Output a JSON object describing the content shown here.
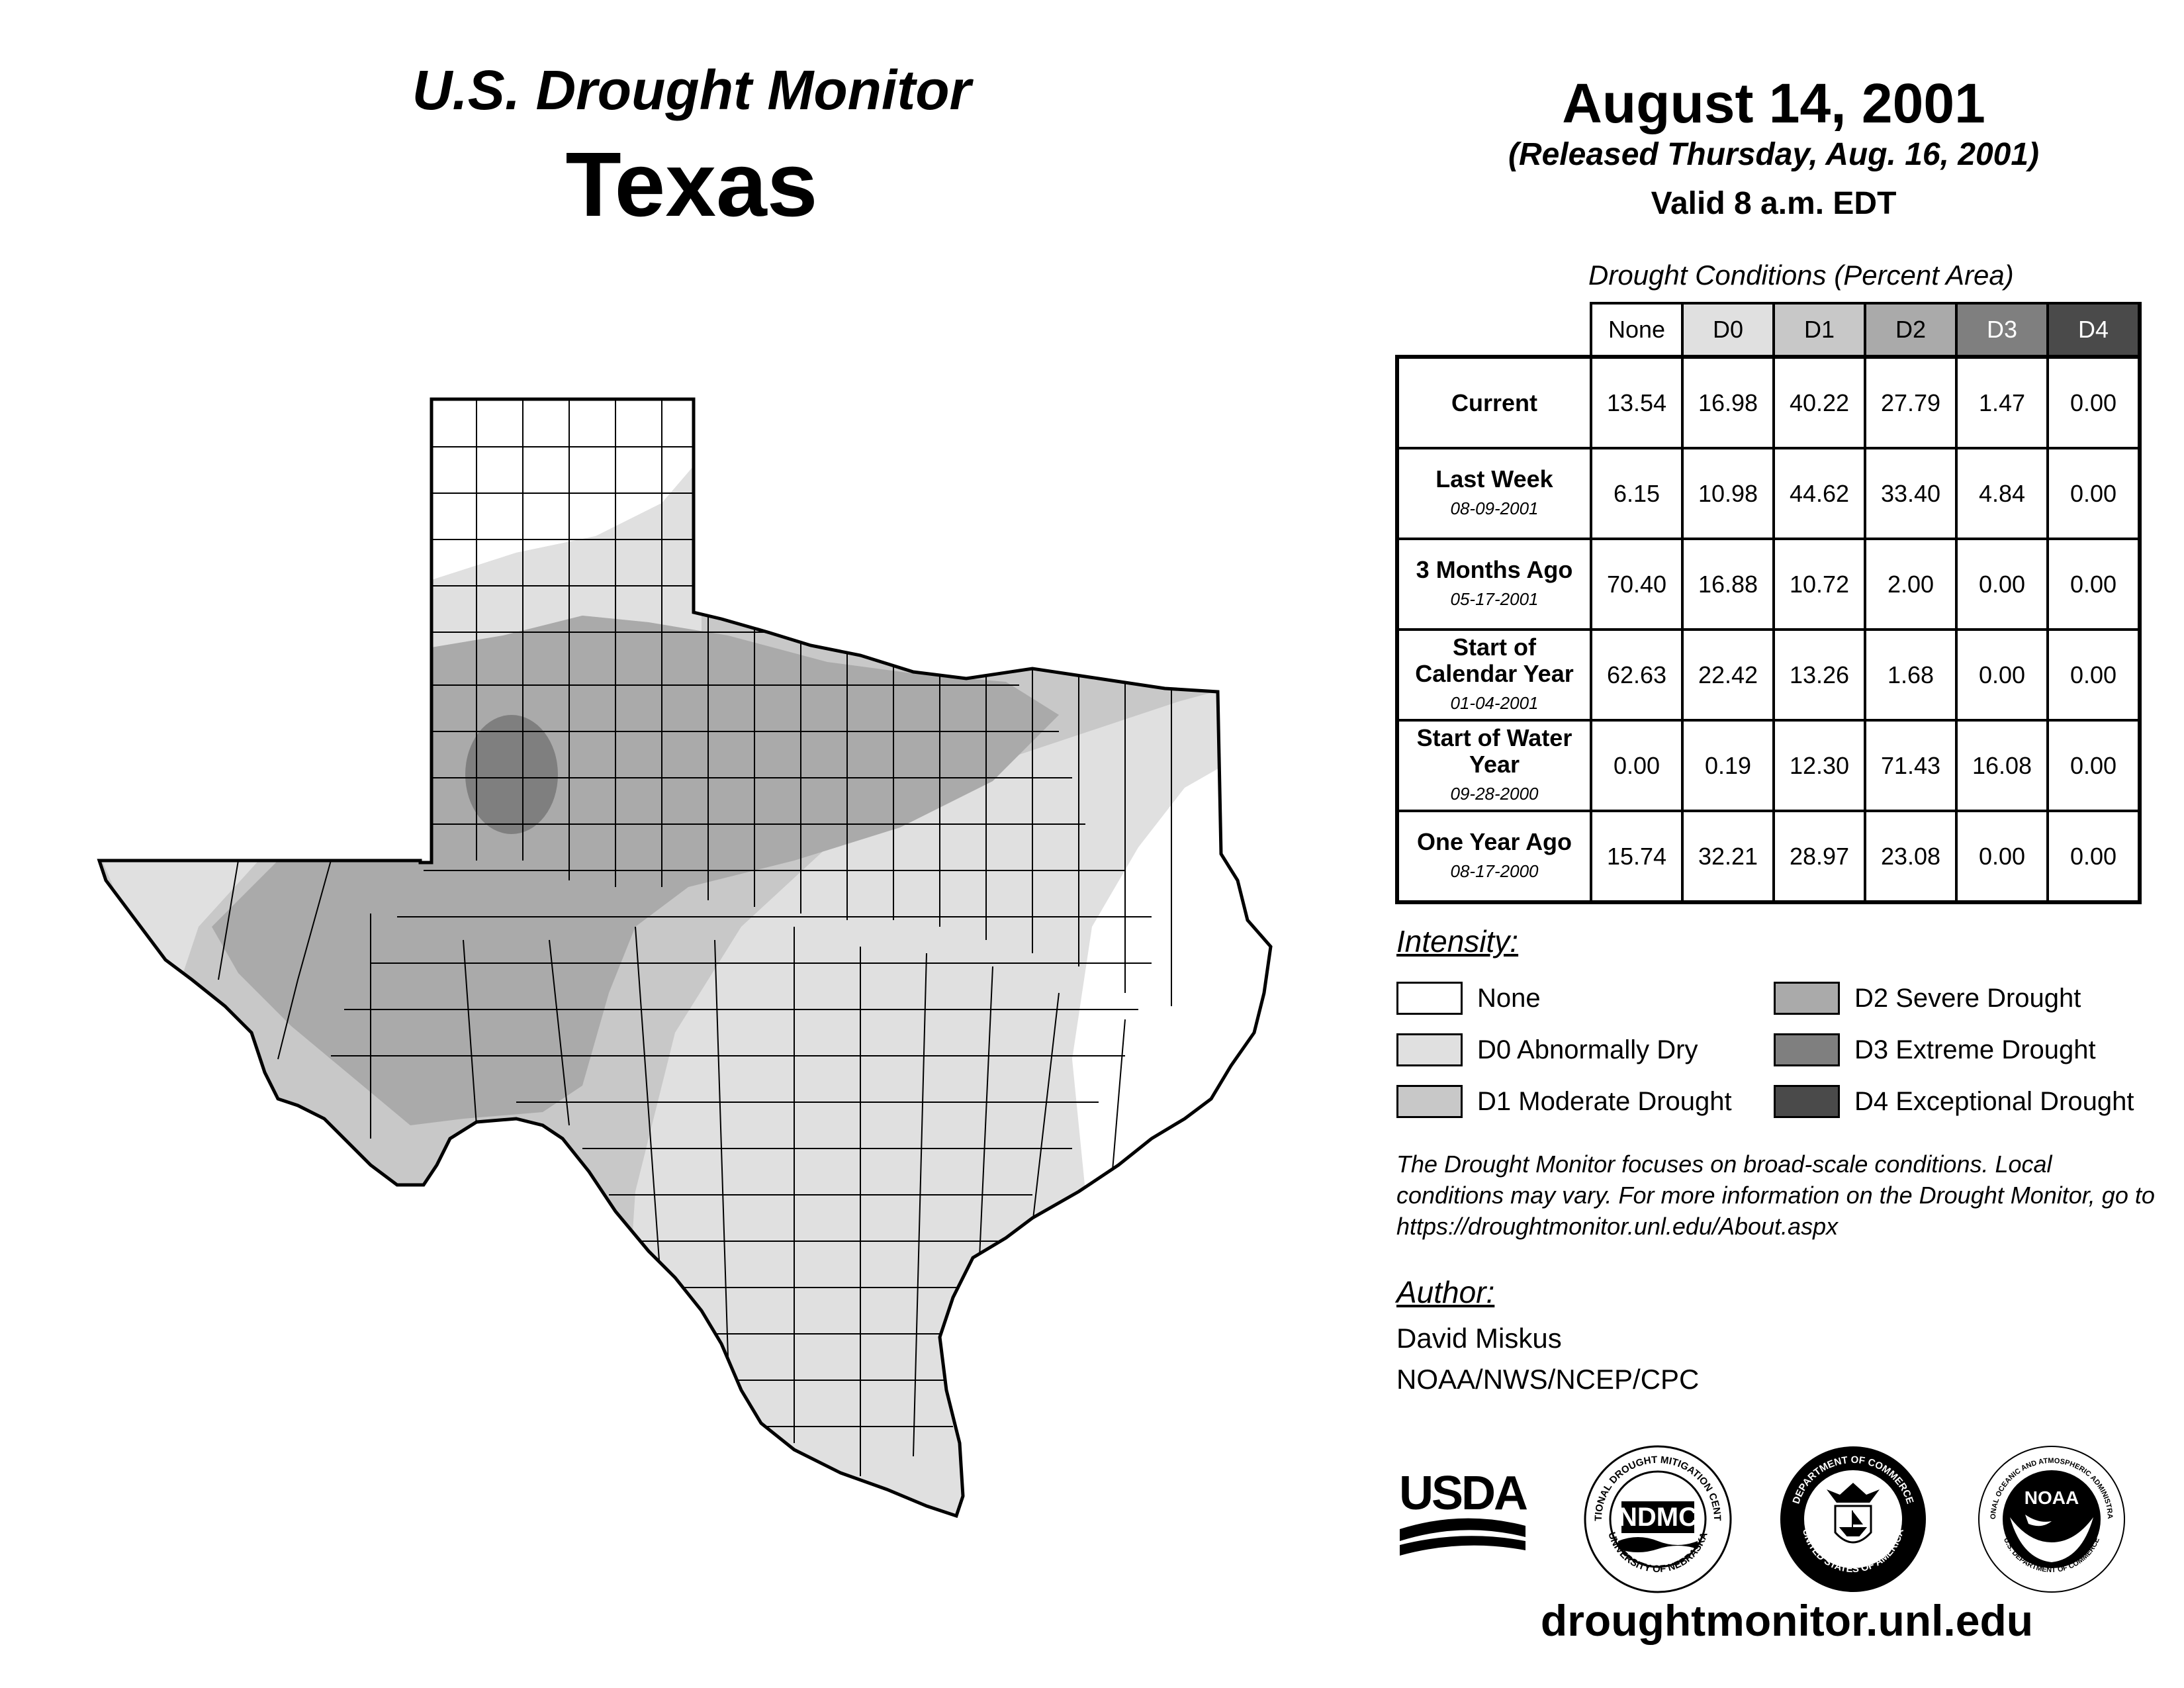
{
  "header": {
    "subtitle": "U.S. Drought Monitor",
    "state": "Texas",
    "date": "August 14, 2001",
    "released": "(Released Thursday, Aug. 16, 2001)",
    "valid": "Valid 8 a.m. EDT"
  },
  "table": {
    "caption": "Drought Conditions (Percent Area)",
    "columns": [
      "None",
      "D0",
      "D1",
      "D2",
      "D3",
      "D4"
    ],
    "rows": [
      {
        "label": "Current",
        "date": "",
        "values": [
          "13.54",
          "16.98",
          "40.22",
          "27.79",
          "1.47",
          "0.00"
        ]
      },
      {
        "label": "Last Week",
        "date": "08-09-2001",
        "values": [
          "6.15",
          "10.98",
          "44.62",
          "33.40",
          "4.84",
          "0.00"
        ]
      },
      {
        "label": "3 Months Ago",
        "date": "05-17-2001",
        "values": [
          "70.40",
          "16.88",
          "10.72",
          "2.00",
          "0.00",
          "0.00"
        ]
      },
      {
        "label": "Start of Calendar Year",
        "date": "01-04-2001",
        "values": [
          "62.63",
          "22.42",
          "13.26",
          "1.68",
          "0.00",
          "0.00"
        ]
      },
      {
        "label": "Start of Water Year",
        "date": "09-28-2000",
        "values": [
          "0.00",
          "0.19",
          "12.30",
          "71.43",
          "16.08",
          "0.00"
        ]
      },
      {
        "label": "One Year Ago",
        "date": "08-17-2000",
        "values": [
          "15.74",
          "32.21",
          "28.97",
          "23.08",
          "0.00",
          "0.00"
        ]
      }
    ]
  },
  "legend": {
    "title": "Intensity:",
    "items": [
      {
        "label": "None",
        "color": "#ffffff"
      },
      {
        "label": "D0 Abnormally Dry",
        "color": "#e0e0e0"
      },
      {
        "label": "D1 Moderate Drought",
        "color": "#c8c8c8"
      },
      {
        "label": "D2 Severe Drought",
        "color": "#aaaaaa"
      },
      {
        "label": "D3 Extreme Drought",
        "color": "#7f7f7f"
      },
      {
        "label": "D4 Exceptional Drought",
        "color": "#4a4a4a"
      }
    ]
  },
  "note": "The Drought Monitor focuses on broad-scale conditions. Local conditions may vary. For more information on the Drought Monitor, go to https://droughtmonitor.unl.edu/About.aspx",
  "author": {
    "heading": "Author:",
    "name": "David Miskus",
    "org": "NOAA/NWS/NCEP/CPC"
  },
  "logos": {
    "usda": "USDA",
    "ndmc": "NDMC",
    "ndmc_ring_top": "NATIONAL DROUGHT MITIGATION CENTER",
    "ndmc_ring_bottom": "UNIVERSITY OF NEBRASKA",
    "doc_ring_top": "DEPARTMENT OF COMMERCE",
    "doc_ring_bottom": "UNITED STATES OF AMERICA",
    "noaa": "NOAA",
    "noaa_ring_top": "NATIONAL OCEANIC AND ATMOSPHERIC ADMINISTRATION",
    "noaa_ring_bottom": "U.S. DEPARTMENT OF COMMERCE"
  },
  "website": "droughtmonitor.unl.edu"
}
